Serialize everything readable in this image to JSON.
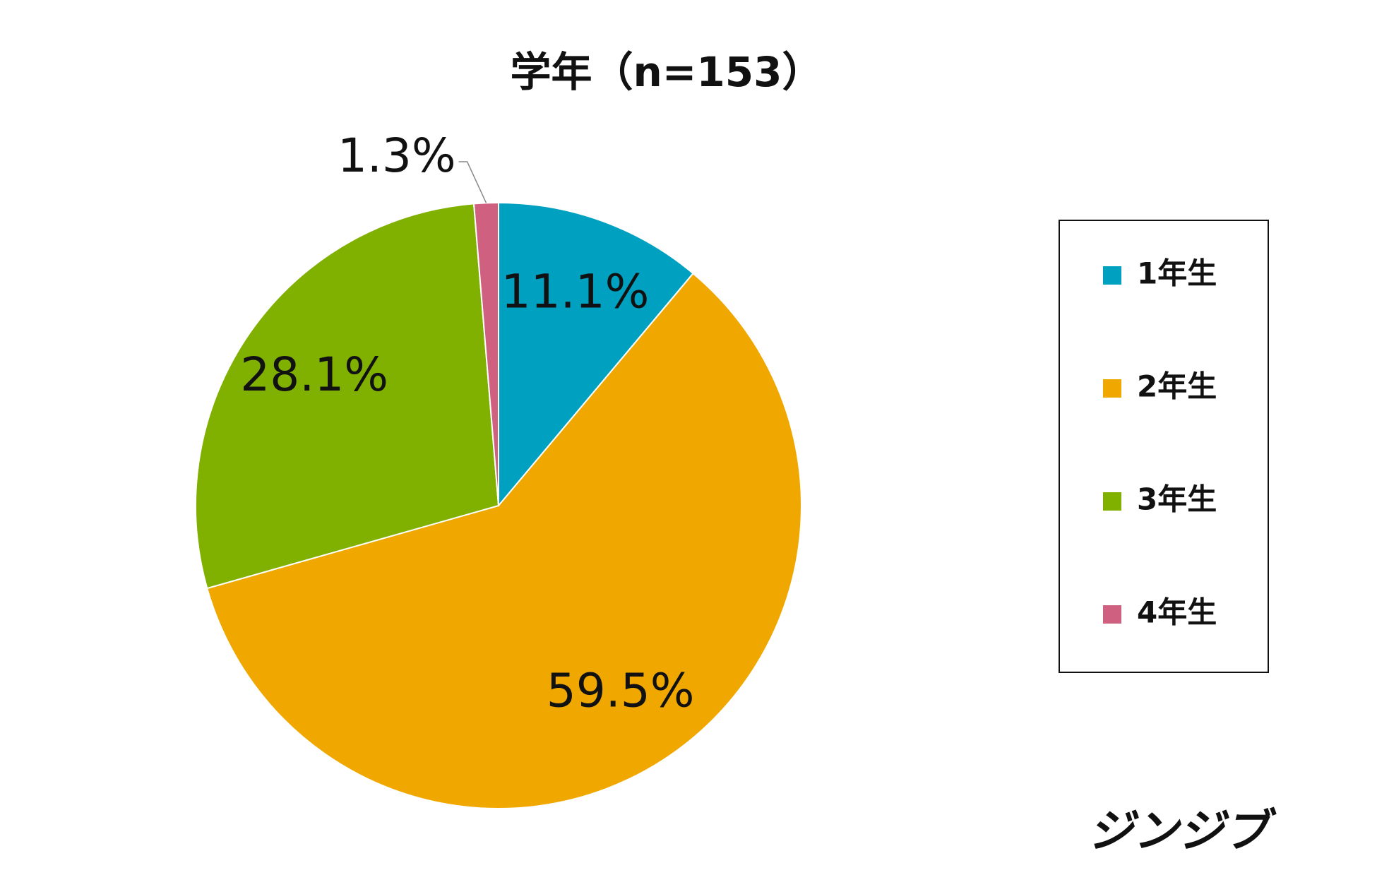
{
  "chart_data": {
    "type": "pie",
    "title": "学年（n=153）",
    "categories": [
      "1年生",
      "2年生",
      "3年生",
      "4年生"
    ],
    "values": [
      11.1,
      59.5,
      28.1,
      1.3
    ],
    "value_labels": [
      "11.1%",
      "59.5%",
      "28.1%",
      "1.3%"
    ],
    "colors": [
      "#00a0c0",
      "#f0a800",
      "#80b000",
      "#d06080"
    ],
    "legend": "right"
  },
  "logo": "ジンジブ"
}
